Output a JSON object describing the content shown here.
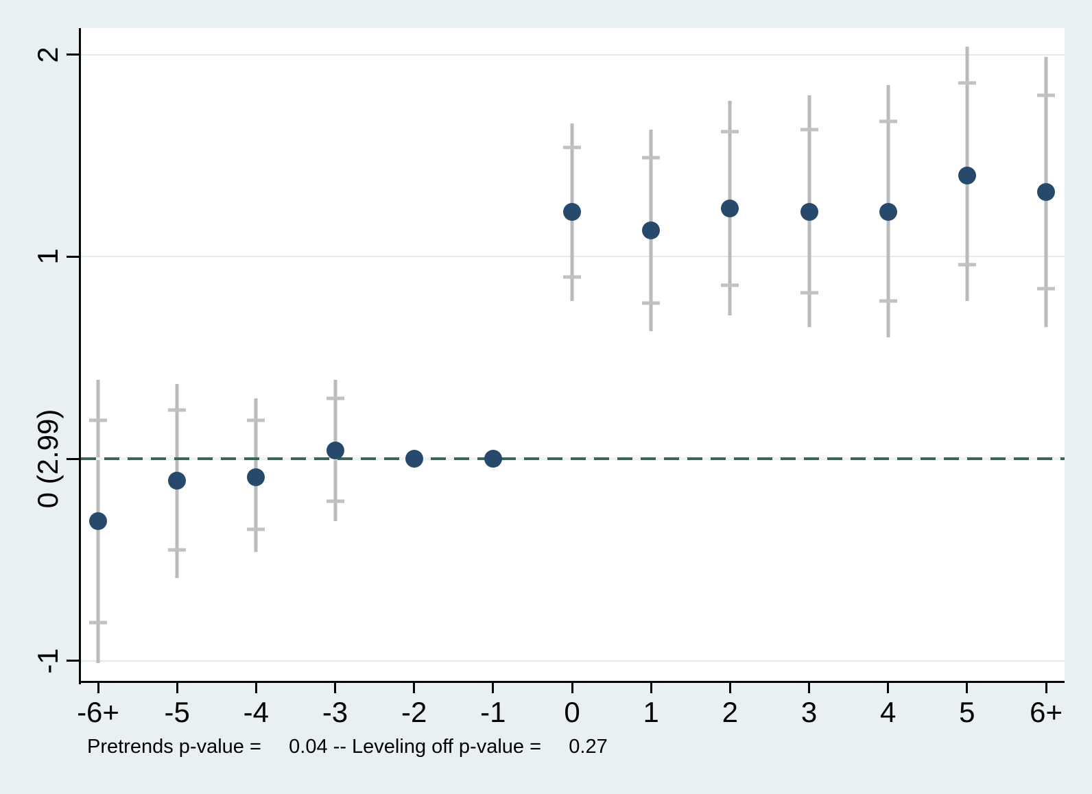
{
  "figure": {
    "background_color": "#e9f0f2",
    "plot_background_color": "#ffffff",
    "gridline_color": "#e2ecef",
    "axis_color": "#000000"
  },
  "chart_data": {
    "type": "scatter",
    "subtype": "event-study-coefficient-plot",
    "title": "",
    "xlabel": "",
    "ylabel": "",
    "grid": true,
    "legend": false,
    "xlim": [
      -6.22,
      6.23
    ],
    "ylim": [
      -1.1,
      2.13
    ],
    "x_values": [
      -6,
      -5,
      -4,
      -3,
      -2,
      -1,
      0,
      1,
      2,
      3,
      4,
      5,
      6
    ],
    "x_tick_labels": [
      "-6+",
      "-5",
      "-4",
      "-3",
      "-2",
      "-1",
      "0",
      "1",
      "2",
      "3",
      "4",
      "5",
      "6+"
    ],
    "y_ticks": [
      {
        "value": 2,
        "label": "2"
      },
      {
        "value": 1,
        "label": "1"
      },
      {
        "value": 0,
        "label": "0 (2.99)"
      },
      {
        "value": -1,
        "label": "-1"
      }
    ],
    "reference_line": {
      "y": 0,
      "style": "dashed",
      "color": "#3d6459",
      "gap_color": "#edf3f4"
    },
    "series": [
      {
        "name": "point-estimates",
        "marker_color": "#274a6c",
        "ci_line_color": "#b9babc",
        "ci_cap_color": "#bfc2c3",
        "points": [
          {
            "x": -6,
            "label": "-6+",
            "estimate": -0.31,
            "ci_outer": [
              -1.01,
              0.39
            ],
            "ci_inner": [
              -0.81,
              0.19
            ]
          },
          {
            "x": -5,
            "label": "-5",
            "estimate": -0.11,
            "ci_outer": [
              -0.59,
              0.37
            ],
            "ci_inner": [
              -0.45,
              0.24
            ]
          },
          {
            "x": -4,
            "label": "-4",
            "estimate": -0.09,
            "ci_outer": [
              -0.46,
              0.3
            ],
            "ci_inner": [
              -0.35,
              0.19
            ]
          },
          {
            "x": -3,
            "label": "-3",
            "estimate": 0.04,
            "ci_outer": [
              -0.31,
              0.39
            ],
            "ci_inner": [
              -0.21,
              0.3
            ]
          },
          {
            "x": -2,
            "label": "-2",
            "estimate": 0.0,
            "ci_outer": null,
            "ci_inner": null
          },
          {
            "x": -1,
            "label": "-1",
            "estimate": 0.0,
            "ci_outer": null,
            "ci_inner": null
          },
          {
            "x": 0,
            "label": "0",
            "estimate": 1.22,
            "ci_outer": [
              0.78,
              1.66
            ],
            "ci_inner": [
              0.9,
              1.54
            ]
          },
          {
            "x": 1,
            "label": "1",
            "estimate": 1.13,
            "ci_outer": [
              0.63,
              1.63
            ],
            "ci_inner": [
              0.77,
              1.49
            ]
          },
          {
            "x": 2,
            "label": "2",
            "estimate": 1.24,
            "ci_outer": [
              0.71,
              1.77
            ],
            "ci_inner": [
              0.86,
              1.62
            ]
          },
          {
            "x": 3,
            "label": "3",
            "estimate": 1.22,
            "ci_outer": [
              0.65,
              1.8
            ],
            "ci_inner": [
              0.82,
              1.63
            ]
          },
          {
            "x": 4,
            "label": "4",
            "estimate": 1.22,
            "ci_outer": [
              0.6,
              1.85
            ],
            "ci_inner": [
              0.78,
              1.67
            ]
          },
          {
            "x": 5,
            "label": "5",
            "estimate": 1.4,
            "ci_outer": [
              0.78,
              2.04
            ],
            "ci_inner": [
              0.96,
              1.86
            ]
          },
          {
            "x": 6,
            "label": "6+",
            "estimate": 1.32,
            "ci_outer": [
              0.65,
              1.99
            ],
            "ci_inner": [
              0.84,
              1.8
            ]
          }
        ]
      }
    ],
    "caption": "Pretrends p-value =     0.04 -- Leveling off p-value =     0.27",
    "pretrends_p_value": "0.04",
    "leveling_off_p_value": "0.27"
  }
}
